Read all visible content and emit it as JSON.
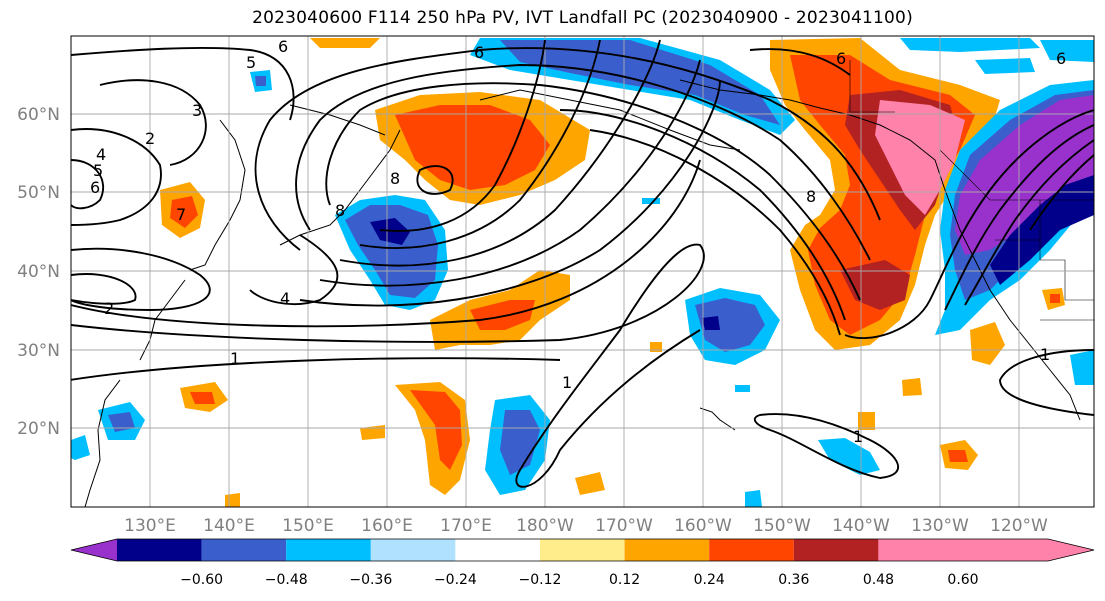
{
  "title": "2023040600 F114 250 hPa PV, IVT Landfall PC (2023040900 - 2023041100)",
  "lat_ticks": [
    "60°N",
    "50°N",
    "40°N",
    "30°N",
    "20°N"
  ],
  "lon_ticks": [
    "130°E",
    "140°E",
    "150°E",
    "160°E",
    "170°E",
    "180°W",
    "170°W",
    "160°W",
    "150°W",
    "140°W",
    "130°W",
    "120°W"
  ],
  "colorbar": {
    "ticks": [
      "−0.60",
      "−0.48",
      "−0.36",
      "−0.24",
      "−0.12",
      "0.12",
      "0.24",
      "0.36",
      "0.48",
      "0.60"
    ],
    "colors": [
      "#9932CC",
      "#00008B",
      "#3A5FCD",
      "#00BFFF",
      "#B0E2FF",
      "#FFFFFF",
      "#FFEC8B",
      "#FFA500",
      "#FF4500",
      "#B22222",
      "#FF82AB"
    ]
  },
  "contour_labels": [
    "6",
    "5",
    "6",
    "3",
    "2",
    "4",
    "5",
    "6",
    "7",
    "2",
    "4",
    "1",
    "8",
    "8",
    "1",
    "8",
    "1",
    "1",
    "6",
    "6"
  ]
}
